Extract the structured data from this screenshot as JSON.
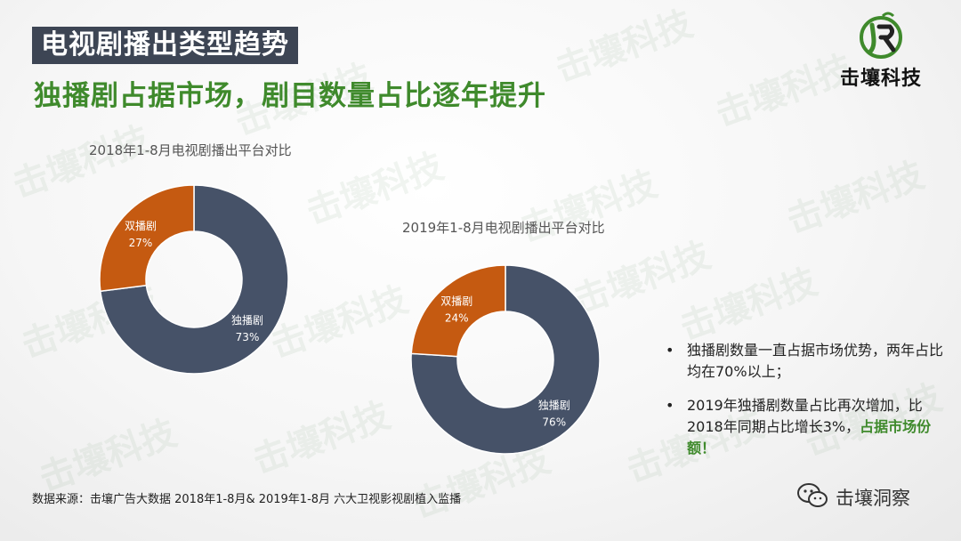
{
  "header": {
    "title": "电视剧播出类型趋势",
    "subtitle": "独播剧占据市场，剧目数量占比逐年提升"
  },
  "logo": {
    "text": "击壤科技"
  },
  "watermark": {
    "text": "击壤科技"
  },
  "chart_data": [
    {
      "type": "pie",
      "title": "2018年1-8月电视剧播出平台对比",
      "donut": true,
      "categories": [
        "独播剧",
        "双播剧"
      ],
      "values": [
        73,
        27
      ],
      "labels": [
        "73%",
        "27%"
      ],
      "colors": [
        "#465268",
        "#c55a11"
      ]
    },
    {
      "type": "pie",
      "title": "2019年1-8月电视剧播出平台对比",
      "donut": true,
      "categories": [
        "独播剧",
        "双播剧"
      ],
      "values": [
        76,
        24
      ],
      "labels": [
        "76%",
        "24%"
      ],
      "colors": [
        "#465268",
        "#c55a11"
      ]
    }
  ],
  "notes": [
    {
      "text": "独播剧数量一直占据市场优势，两年占比均在70%以上；"
    },
    {
      "text": "2019年独播剧数量占比再次增加，比2018年同期占比增长3%，",
      "highlight": "占据市场份额！"
    }
  ],
  "source": "数据来源：击壤广告大数据 2018年1-8月& 2019年1-8月 六大卫视影视剧植入监播",
  "footer": {
    "wechat_label": "击壤洞察"
  },
  "colors": {
    "accent_green": "#3f8a2c",
    "title_bg": "#3d4554",
    "dark_slice": "#465268",
    "orange_slice": "#c55a11"
  }
}
